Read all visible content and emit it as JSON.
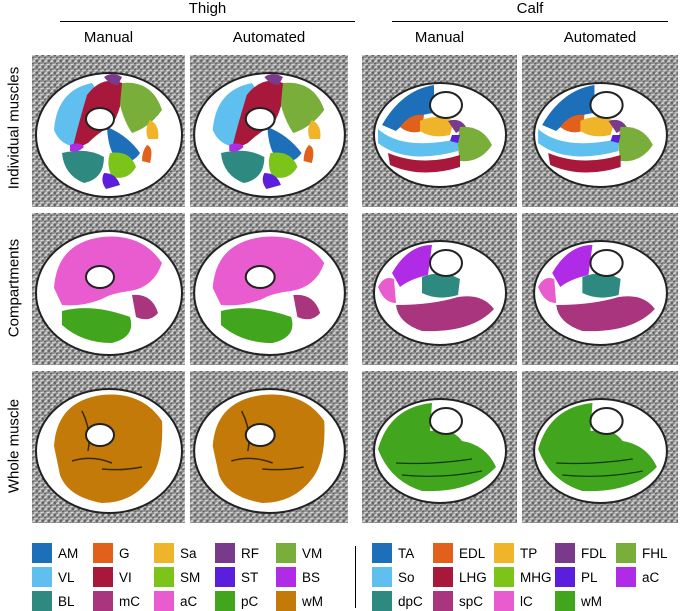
{
  "headers": {
    "thigh": "Thigh",
    "calf": "Calf"
  },
  "subheaders": {
    "thigh_manual": "Manual",
    "thigh_automated": "Automated",
    "calf_manual": "Manual",
    "calf_automated": "Automated"
  },
  "rows": {
    "individual": "Individual muscles",
    "compartments": "Compartments",
    "whole": "Whole muscle"
  },
  "colors": {
    "AM": "#1c6fb8",
    "G": "#e0601c",
    "Sa": "#f0b42a",
    "RF": "#7a3a8c",
    "VM": "#7aae3a",
    "VL": "#5fbfee",
    "VI": "#a8183a",
    "SM": "#7cc41a",
    "ST": "#5a1edc",
    "BS": "#b02be6",
    "BL": "#2e8a80",
    "mC": "#a8357e",
    "aC": "#e85cd0",
    "pC": "#42a51e",
    "wM": "#c47a08",
    "TA": "#1c6fb8",
    "EDL": "#e0601c",
    "TP": "#f0b42a",
    "FDL": "#7a3a8c",
    "FHL": "#7aae3a",
    "So": "#5fbfee",
    "LHG": "#a8183a",
    "MHG": "#7cc41a",
    "PL": "#5a1edc",
    "aC2": "#b02be6",
    "dpC": "#2e8a80",
    "spC": "#a8357e",
    "lC": "#e85cd0",
    "wM2": "#42a51e"
  },
  "legend_thigh": [
    [
      {
        "label": "AM",
        "color": "#1c6fb8"
      },
      {
        "label": "G",
        "color": "#e0601c"
      },
      {
        "label": "Sa",
        "color": "#f0b42a"
      },
      {
        "label": "RF",
        "color": "#7a3a8c"
      },
      {
        "label": "VM",
        "color": "#7aae3a"
      }
    ],
    [
      {
        "label": "VL",
        "color": "#5fbfee"
      },
      {
        "label": "VI",
        "color": "#a8183a"
      },
      {
        "label": "SM",
        "color": "#7cc41a"
      },
      {
        "label": "ST",
        "color": "#5a1edc"
      },
      {
        "label": "BS",
        "color": "#b02be6"
      }
    ],
    [
      {
        "label": "BL",
        "color": "#2e8a80"
      },
      {
        "label": "mC",
        "color": "#a8357e"
      },
      {
        "label": "aC",
        "color": "#e85cd0"
      },
      {
        "label": "pC",
        "color": "#42a51e"
      },
      {
        "label": "wM",
        "color": "#c47a08"
      }
    ]
  ],
  "legend_calf": [
    [
      {
        "label": "TA",
        "color": "#1c6fb8"
      },
      {
        "label": "EDL",
        "color": "#e0601c"
      },
      {
        "label": "TP",
        "color": "#f0b42a"
      },
      {
        "label": "FDL",
        "color": "#7a3a8c"
      },
      {
        "label": "FHL",
        "color": "#7aae3a"
      }
    ],
    [
      {
        "label": "So",
        "color": "#5fbfee"
      },
      {
        "label": "LHG",
        "color": "#a8183a"
      },
      {
        "label": "MHG",
        "color": "#7cc41a"
      },
      {
        "label": "PL",
        "color": "#5a1edc"
      },
      {
        "label": "aC",
        "color": "#b02be6"
      }
    ],
    [
      {
        "label": "dpC",
        "color": "#2e8a80"
      },
      {
        "label": "spC",
        "color": "#a8357e"
      },
      {
        "label": "lC",
        "color": "#e85cd0"
      },
      {
        "label": "wM",
        "color": "#42a51e"
      }
    ]
  ]
}
